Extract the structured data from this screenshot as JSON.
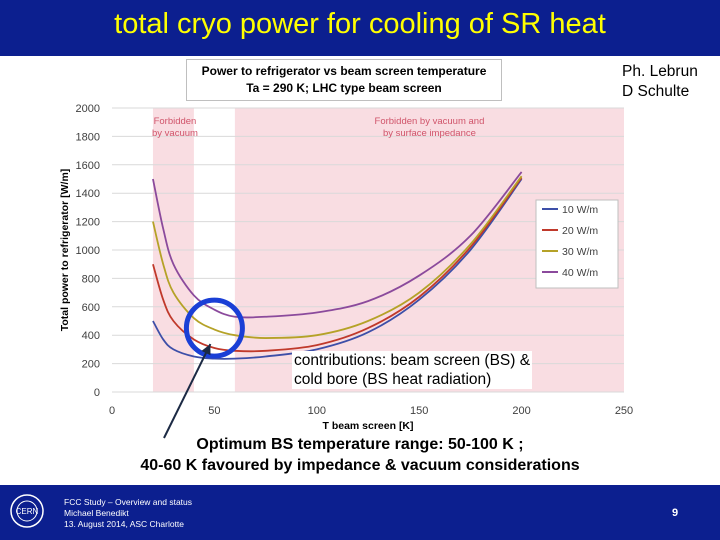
{
  "slide": {
    "title": "total cryo power for cooling of SR heat",
    "authors": [
      "Ph. Lebrun",
      "D  Schulte"
    ],
    "note_lines": [
      "contributions: beam screen (BS) &",
      "cold bore (BS heat radiation)"
    ],
    "optimum_lines": [
      "Optimum BS temperature range: 50-100 K ;",
      "40-60 K favoured by impedance & vacuum considerations"
    ],
    "footer_lines": [
      "FCC Study – Overview and status",
      "Michael Benedikt",
      "13. August 2014, ASC Charlotte"
    ],
    "page_number": "9",
    "colors": {
      "title_bar": "#0c1f8f",
      "title_text": "#ffff00",
      "forbidden": "#f9dde2",
      "marker": "#1a3fd6"
    },
    "logo_icon": "cern-logo-icon",
    "arrow_icon": "arrow-icon"
  },
  "chart_data": {
    "type": "line",
    "title": [
      "Power to refrigerator vs beam screen temperature",
      "Ta = 290 K; LHC type beam screen"
    ],
    "xlabel": "T beam screen [K]",
    "ylabel": "Total power to refrigerator [W/m]",
    "xlim": [
      0,
      250
    ],
    "ylim": [
      0,
      2000
    ],
    "xticks": [
      0,
      50,
      100,
      150,
      200,
      250
    ],
    "yticks": [
      0,
      200,
      400,
      600,
      800,
      1000,
      1200,
      1400,
      1600,
      1800,
      2000
    ],
    "grid": "horizontal",
    "legend": "right",
    "regions": [
      {
        "label": [
          "Forbidden",
          "by vacuum"
        ],
        "x0": 20,
        "x1": 40
      },
      {
        "label": [
          "Forbidden by vacuum and",
          "by surface impedance"
        ],
        "x0": 60,
        "x1": 250
      }
    ],
    "marker": {
      "shape": "circle",
      "x": 50,
      "y": 450
    },
    "series": [
      {
        "name": "10 W/m",
        "color": "#3d4fa8",
        "x": [
          20,
          25,
          30,
          40,
          50,
          60,
          75,
          100,
          125,
          150,
          175,
          200
        ],
        "y": [
          500,
          370,
          300,
          250,
          235,
          235,
          250,
          300,
          420,
          650,
          1000,
          1500
        ]
      },
      {
        "name": "20 W/m",
        "color": "#c0392b",
        "x": [
          20,
          25,
          30,
          40,
          50,
          60,
          75,
          100,
          125,
          150,
          175,
          200
        ],
        "y": [
          900,
          650,
          500,
          370,
          310,
          290,
          290,
          330,
          450,
          670,
          1020,
          1510
        ]
      },
      {
        "name": "30 W/m",
        "color": "#b5a227",
        "x": [
          20,
          25,
          30,
          40,
          50,
          60,
          75,
          100,
          125,
          150,
          175,
          200
        ],
        "y": [
          1200,
          900,
          700,
          520,
          440,
          400,
          380,
          400,
          500,
          700,
          1040,
          1520
        ]
      },
      {
        "name": "40 W/m",
        "color": "#8b4a9c",
        "x": [
          20,
          25,
          30,
          40,
          50,
          60,
          75,
          100,
          125,
          150,
          175,
          200
        ],
        "y": [
          1500,
          1150,
          900,
          680,
          580,
          530,
          530,
          560,
          640,
          820,
          1100,
          1550
        ]
      }
    ]
  }
}
